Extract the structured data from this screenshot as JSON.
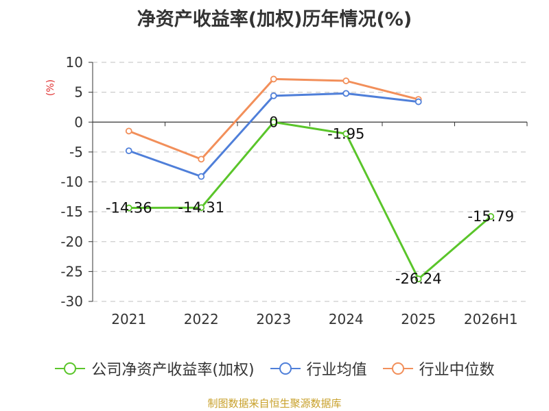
{
  "chart_data": {
    "type": "line",
    "title": "净资产收益率(加权)历年情况(%)",
    "ylabel": "(%)",
    "categories": [
      "2021",
      "2022",
      "2023",
      "2024",
      "2025",
      "2026H1"
    ],
    "ylim": [
      -30,
      10
    ],
    "yticks": [
      10,
      5,
      0,
      -5,
      -10,
      -15,
      -20,
      -25,
      -30
    ],
    "grid": true,
    "legend_position": "bottom",
    "series": [
      {
        "name": "公司净资产收益率(加权)",
        "color": "#5ac52a",
        "values": [
          -14.36,
          -14.31,
          0,
          -1.95,
          -26.24,
          -15.79
        ],
        "data_labels": [
          "-14.36",
          "-14.31",
          "0",
          "-1.95",
          "-26.24",
          "-15.79"
        ]
      },
      {
        "name": "行业均值",
        "color": "#4f7fd9",
        "values": [
          -4.8,
          -9.1,
          4.4,
          4.8,
          3.4,
          null
        ]
      },
      {
        "name": "行业中位数",
        "color": "#f28f5a",
        "values": [
          -1.5,
          -6.2,
          7.2,
          6.9,
          3.8,
          null
        ]
      }
    ]
  },
  "source_note": "制图数据来自恒生聚源数据库"
}
